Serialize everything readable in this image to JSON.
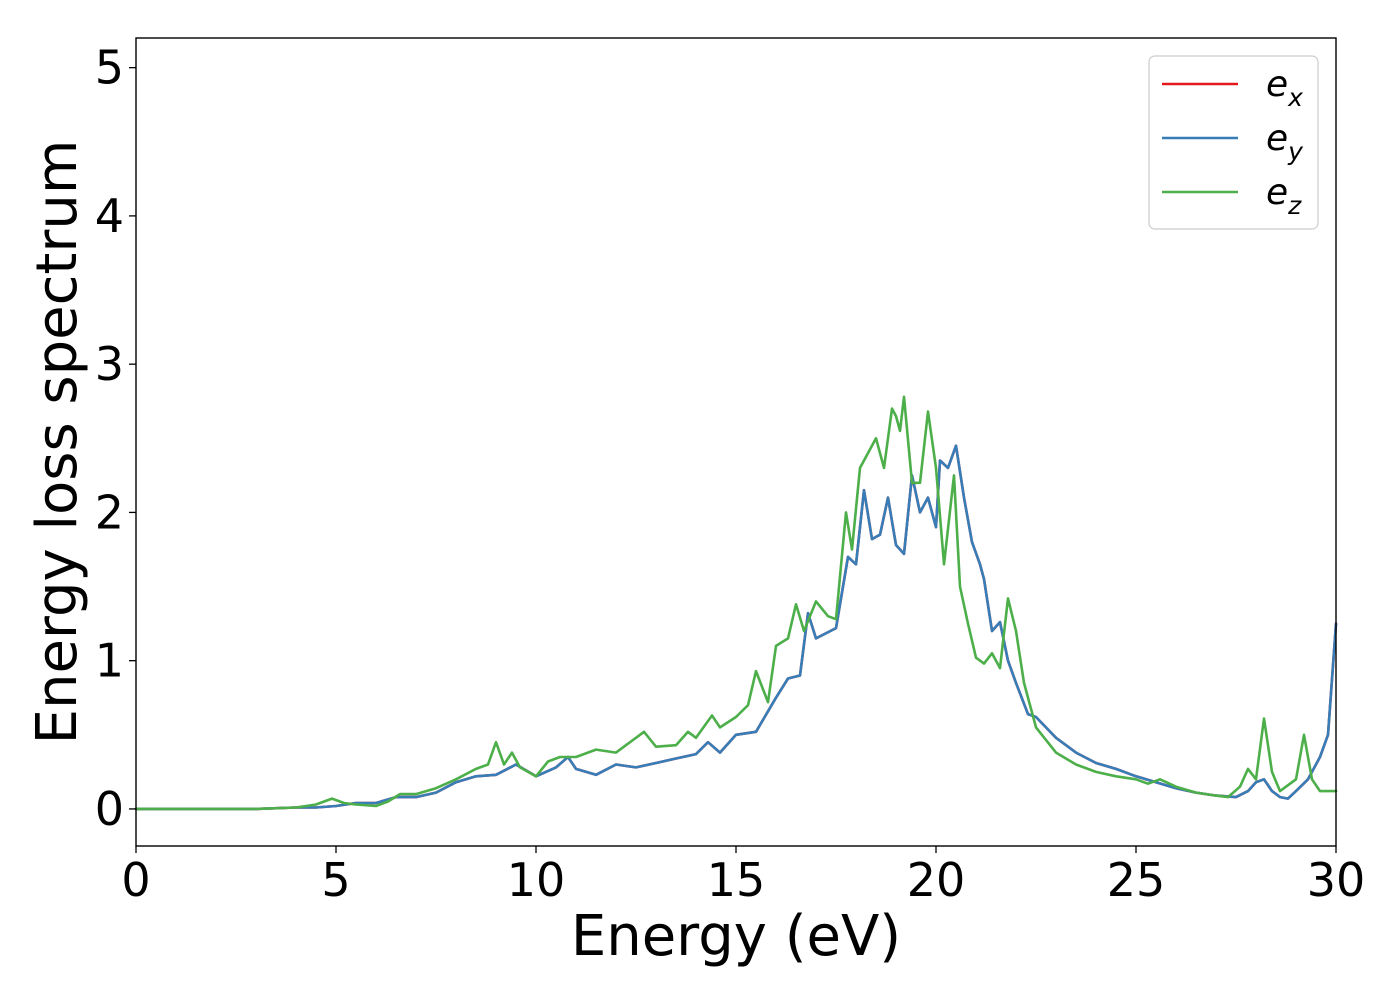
{
  "chart_data": {
    "type": "line",
    "xlabel": "Energy (eV)",
    "ylabel": "Energy loss spectrum",
    "xlim": [
      0,
      30
    ],
    "ylim": [
      -0.25,
      5.2
    ],
    "xticks": [
      "0",
      "5",
      "10",
      "15",
      "20",
      "25",
      "30"
    ],
    "yticks": [
      "0",
      "1",
      "2",
      "3",
      "4",
      "5"
    ],
    "grid": false,
    "legend_position": "top-right",
    "series": [
      {
        "name": "e",
        "subscript": "x",
        "color": "#e41a1c",
        "x": [
          0,
          1,
          2,
          3,
          4,
          4.5,
          5,
          5.5,
          6,
          6.5,
          7,
          7.5,
          8,
          8.5,
          9,
          9.5,
          10,
          10.5,
          10.8,
          11,
          11.5,
          12,
          12.5,
          13,
          13.5,
          14,
          14.3,
          14.6,
          15,
          15.5,
          16,
          16.3,
          16.6,
          16.8,
          17,
          17.5,
          17.8,
          18,
          18.2,
          18.4,
          18.6,
          18.8,
          19,
          19.2,
          19.4,
          19.6,
          19.8,
          20,
          20.1,
          20.3,
          20.5,
          20.7,
          20.9,
          21.1,
          21.2,
          21.4,
          21.6,
          21.8,
          22,
          22.3,
          22.5,
          23,
          23.5,
          24,
          24.5,
          25,
          25.5,
          26,
          26.5,
          27,
          27.5,
          27.8,
          28,
          28.2,
          28.4,
          28.6,
          28.8,
          29,
          29.3,
          29.6,
          29.8,
          30
        ],
        "y": [
          0,
          0,
          0,
          0,
          0.01,
          0.01,
          0.02,
          0.04,
          0.04,
          0.08,
          0.08,
          0.11,
          0.18,
          0.22,
          0.23,
          0.3,
          0.22,
          0.28,
          0.35,
          0.27,
          0.23,
          0.3,
          0.28,
          0.31,
          0.34,
          0.37,
          0.45,
          0.38,
          0.5,
          0.52,
          0.75,
          0.88,
          0.9,
          1.32,
          1.15,
          1.22,
          1.7,
          1.65,
          2.15,
          1.82,
          1.85,
          2.1,
          1.78,
          1.72,
          2.25,
          2.0,
          2.1,
          1.9,
          2.35,
          2.3,
          2.45,
          2.1,
          1.8,
          1.65,
          1.55,
          1.2,
          1.26,
          1.0,
          0.85,
          0.64,
          0.62,
          0.48,
          0.38,
          0.31,
          0.27,
          0.22,
          0.18,
          0.14,
          0.11,
          0.09,
          0.08,
          0.12,
          0.18,
          0.2,
          0.12,
          0.08,
          0.07,
          0.12,
          0.2,
          0.35,
          0.5,
          1.25
        ]
      },
      {
        "name": "e",
        "subscript": "y",
        "color": "#377eb8",
        "x": [
          0,
          1,
          2,
          3,
          4,
          4.5,
          5,
          5.5,
          6,
          6.5,
          7,
          7.5,
          8,
          8.5,
          9,
          9.5,
          10,
          10.5,
          10.8,
          11,
          11.5,
          12,
          12.5,
          13,
          13.5,
          14,
          14.3,
          14.6,
          15,
          15.5,
          16,
          16.3,
          16.6,
          16.8,
          17,
          17.5,
          17.8,
          18,
          18.2,
          18.4,
          18.6,
          18.8,
          19,
          19.2,
          19.4,
          19.6,
          19.8,
          20,
          20.1,
          20.3,
          20.5,
          20.7,
          20.9,
          21.1,
          21.2,
          21.4,
          21.6,
          21.8,
          22,
          22.3,
          22.5,
          23,
          23.5,
          24,
          24.5,
          25,
          25.5,
          26,
          26.5,
          27,
          27.5,
          27.8,
          28,
          28.2,
          28.4,
          28.6,
          28.8,
          29,
          29.3,
          29.6,
          29.8,
          30
        ],
        "y": [
          0,
          0,
          0,
          0,
          0.01,
          0.01,
          0.02,
          0.04,
          0.04,
          0.08,
          0.08,
          0.11,
          0.18,
          0.22,
          0.23,
          0.3,
          0.22,
          0.28,
          0.35,
          0.27,
          0.23,
          0.3,
          0.28,
          0.31,
          0.34,
          0.37,
          0.45,
          0.38,
          0.5,
          0.52,
          0.75,
          0.88,
          0.9,
          1.32,
          1.15,
          1.22,
          1.7,
          1.65,
          2.15,
          1.82,
          1.85,
          2.1,
          1.78,
          1.72,
          2.25,
          2.0,
          2.1,
          1.9,
          2.35,
          2.3,
          2.45,
          2.1,
          1.8,
          1.65,
          1.55,
          1.2,
          1.26,
          1.0,
          0.85,
          0.64,
          0.62,
          0.48,
          0.38,
          0.31,
          0.27,
          0.22,
          0.18,
          0.14,
          0.11,
          0.09,
          0.08,
          0.12,
          0.18,
          0.2,
          0.12,
          0.08,
          0.07,
          0.12,
          0.2,
          0.35,
          0.5,
          1.25
        ]
      },
      {
        "name": "e",
        "subscript": "z",
        "color": "#4daf4a",
        "x": [
          0,
          1,
          2,
          3,
          4,
          4.5,
          4.9,
          5.2,
          5.5,
          6,
          6.3,
          6.6,
          7,
          7.5,
          8,
          8.5,
          8.8,
          9,
          9.2,
          9.4,
          9.6,
          10,
          10.3,
          10.6,
          11,
          11.5,
          12,
          12.5,
          12.7,
          13,
          13.5,
          13.8,
          14,
          14.4,
          14.6,
          15,
          15.3,
          15.5,
          15.8,
          16,
          16.3,
          16.5,
          16.7,
          17,
          17.3,
          17.5,
          17.75,
          17.9,
          18.1,
          18.3,
          18.5,
          18.7,
          18.9,
          19,
          19.1,
          19.2,
          19.4,
          19.6,
          19.8,
          20,
          20.2,
          20.45,
          20.6,
          20.8,
          21,
          21.2,
          21.4,
          21.6,
          21.8,
          22,
          22.2,
          22.5,
          23,
          23.5,
          24,
          24.5,
          25,
          25.3,
          25.6,
          26,
          26.5,
          27,
          27.3,
          27.6,
          27.8,
          28,
          28.2,
          28.4,
          28.6,
          29,
          29.2,
          29.4,
          29.6,
          30
        ],
        "y": [
          0,
          0,
          0,
          0,
          0.01,
          0.03,
          0.07,
          0.04,
          0.03,
          0.02,
          0.05,
          0.1,
          0.1,
          0.14,
          0.2,
          0.27,
          0.3,
          0.45,
          0.3,
          0.38,
          0.28,
          0.22,
          0.32,
          0.35,
          0.35,
          0.4,
          0.38,
          0.48,
          0.52,
          0.42,
          0.43,
          0.52,
          0.48,
          0.63,
          0.55,
          0.62,
          0.7,
          0.93,
          0.72,
          1.1,
          1.15,
          1.38,
          1.2,
          1.4,
          1.3,
          1.28,
          2.0,
          1.75,
          2.3,
          2.4,
          2.5,
          2.3,
          2.7,
          2.65,
          2.55,
          2.78,
          2.2,
          2.2,
          2.68,
          2.3,
          1.65,
          2.25,
          1.5,
          1.25,
          1.02,
          0.98,
          1.05,
          0.95,
          1.42,
          1.2,
          0.85,
          0.55,
          0.38,
          0.3,
          0.25,
          0.22,
          0.2,
          0.17,
          0.2,
          0.15,
          0.11,
          0.09,
          0.08,
          0.15,
          0.27,
          0.2,
          0.61,
          0.25,
          0.12,
          0.2,
          0.5,
          0.2,
          0.12,
          0.12
        ]
      }
    ]
  }
}
